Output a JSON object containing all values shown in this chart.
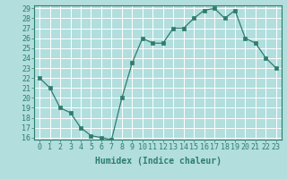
{
  "x": [
    0,
    1,
    2,
    3,
    4,
    5,
    6,
    7,
    8,
    9,
    10,
    11,
    12,
    13,
    14,
    15,
    16,
    17,
    18,
    19,
    20,
    21,
    22,
    23
  ],
  "y": [
    22,
    21,
    19,
    18.5,
    17,
    16.2,
    16.0,
    15.8,
    20.0,
    23.5,
    26.0,
    25.5,
    25.5,
    27.0,
    27.0,
    28.0,
    28.8,
    29.0,
    28.0,
    28.8,
    26.0,
    25.5,
    24.0,
    23.0
  ],
  "line_color": "#2e7d6e",
  "marker_color": "#2e7d6e",
  "bg_color": "#b2dede",
  "grid_color": "#ffffff",
  "xlabel": "Humidex (Indice chaleur)",
  "ylim": [
    16,
    29
  ],
  "xlim": [
    -0.5,
    23.5
  ],
  "yticks": [
    16,
    17,
    18,
    19,
    20,
    21,
    22,
    23,
    24,
    25,
    26,
    27,
    28,
    29
  ],
  "xticks": [
    0,
    1,
    2,
    3,
    4,
    5,
    6,
    7,
    8,
    9,
    10,
    11,
    12,
    13,
    14,
    15,
    16,
    17,
    18,
    19,
    20,
    21,
    22,
    23
  ],
  "xtick_labels": [
    "0",
    "1",
    "2",
    "3",
    "4",
    "5",
    "6",
    "7",
    "8",
    "9",
    "10",
    "11",
    "12",
    "13",
    "14",
    "15",
    "16",
    "17",
    "18",
    "19",
    "20",
    "21",
    "22",
    "23"
  ],
  "axis_fontsize": 7,
  "tick_fontsize": 6
}
